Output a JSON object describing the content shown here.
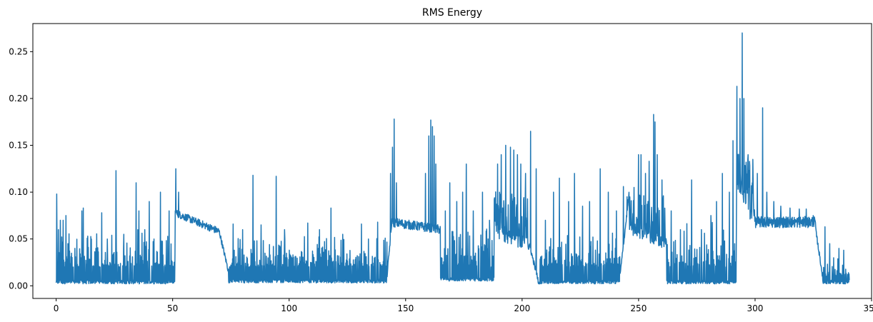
{
  "chart_data": {
    "type": "line",
    "title": "RMS Energy",
    "xlabel": "",
    "ylabel": "",
    "xlim": [
      -10,
      350
    ],
    "ylim": [
      -0.0135,
      0.28
    ],
    "xticks": [
      0,
      50,
      100,
      150,
      200,
      250,
      300,
      350
    ],
    "xtick_labels": [
      "0",
      "50",
      "100",
      "150",
      "200",
      "250",
      "300",
      "350"
    ],
    "yticks": [
      0.0,
      0.05,
      0.1,
      0.15,
      0.2,
      0.25
    ],
    "ytick_labels": [
      "0.00",
      "0.05",
      "0.10",
      "0.15",
      "0.20",
      "0.25"
    ],
    "grid": false,
    "series_color": "#1f77b4",
    "series": [
      {
        "x_start": 0,
        "x_end": 340.5,
        "segments": [
          {
            "x0": 0,
            "x1": 51,
            "mode": "spiky",
            "base": 0.002,
            "peak_lo": 0.02,
            "peak_hi": 0.065,
            "density": 0.55
          },
          {
            "x0": 51,
            "x1": 70,
            "mode": "sustained",
            "level_start": 0.078,
            "level_end": 0.058,
            "noise": 0.004
          },
          {
            "x0": 70,
            "x1": 74,
            "mode": "decay",
            "level_start": 0.058,
            "level_end": 0.015
          },
          {
            "x0": 74,
            "x1": 142,
            "mode": "spiky",
            "base": 0.003,
            "peak_lo": 0.02,
            "peak_hi": 0.06,
            "density": 0.6
          },
          {
            "x0": 142,
            "x1": 144,
            "mode": "rise",
            "level_start": 0.01,
            "level_end": 0.065
          },
          {
            "x0": 144,
            "x1": 165,
            "mode": "sustained",
            "level_start": 0.068,
            "level_end": 0.06,
            "noise": 0.005
          },
          {
            "x0": 165,
            "x1": 188,
            "mode": "spiky",
            "base": 0.005,
            "peak_lo": 0.02,
            "peak_hi": 0.07,
            "density": 0.6
          },
          {
            "x0": 188,
            "x1": 203,
            "mode": "sustained_spiky",
            "level_start": 0.06,
            "level_end": 0.045,
            "noise": 0.01,
            "peak_hi": 0.13
          },
          {
            "x0": 203,
            "x1": 207,
            "mode": "decay",
            "level_start": 0.045,
            "level_end": 0.005
          },
          {
            "x0": 207,
            "x1": 242,
            "mode": "spiky",
            "base": 0.002,
            "peak_lo": 0.02,
            "peak_hi": 0.06,
            "density": 0.55
          },
          {
            "x0": 242,
            "x1": 246,
            "mode": "rise",
            "level_start": 0.01,
            "level_end": 0.1
          },
          {
            "x0": 246,
            "x1": 262,
            "mode": "sustained_spiky",
            "level_start": 0.06,
            "level_end": 0.045,
            "noise": 0.006,
            "peak_hi": 0.13
          },
          {
            "x0": 262,
            "x1": 292,
            "mode": "spiky",
            "base": 0.002,
            "peak_lo": 0.02,
            "peak_hi": 0.075,
            "density": 0.55
          },
          {
            "x0": 292,
            "x1": 300,
            "mode": "sustained_spiky",
            "level_start": 0.11,
            "level_end": 0.07,
            "noise": 0.01,
            "peak_hi": 0.17
          },
          {
            "x0": 300,
            "x1": 326,
            "mode": "sustained",
            "level_start": 0.068,
            "level_end": 0.068,
            "noise": 0.006
          },
          {
            "x0": 326,
            "x1": 329,
            "mode": "decay",
            "level_start": 0.06,
            "level_end": 0.01
          },
          {
            "x0": 329,
            "x1": 340.5,
            "mode": "spiky",
            "base": 0.002,
            "peak_lo": 0.01,
            "peak_hi": 0.035,
            "density": 0.5
          }
        ],
        "peaks": [
          [
            0.3,
            0.098
          ],
          [
            1.0,
            0.06
          ],
          [
            1.8,
            0.07
          ],
          [
            3.0,
            0.07
          ],
          [
            4.2,
            0.075
          ],
          [
            5.0,
            0.045
          ],
          [
            8.0,
            0.04
          ],
          [
            11.0,
            0.08
          ],
          [
            11.6,
            0.083
          ],
          [
            13.5,
            0.053
          ],
          [
            17.0,
            0.04
          ],
          [
            19.6,
            0.078
          ],
          [
            22.0,
            0.05
          ],
          [
            25.7,
            0.123
          ],
          [
            29.0,
            0.055
          ],
          [
            34.3,
            0.11
          ],
          [
            35.5,
            0.08
          ],
          [
            38.0,
            0.06
          ],
          [
            40.0,
            0.09
          ],
          [
            42.0,
            0.05
          ],
          [
            44.7,
            0.1
          ],
          [
            48.5,
            0.08
          ],
          [
            51.3,
            0.125
          ],
          [
            52.5,
            0.1
          ],
          [
            76.0,
            0.066
          ],
          [
            80.0,
            0.06
          ],
          [
            84.5,
            0.118
          ],
          [
            88.0,
            0.065
          ],
          [
            94.5,
            0.117
          ],
          [
            98.0,
            0.06
          ],
          [
            108.0,
            0.067
          ],
          [
            113.0,
            0.06
          ],
          [
            118.0,
            0.083
          ],
          [
            123.0,
            0.055
          ],
          [
            131.0,
            0.066
          ],
          [
            134.0,
            0.05
          ],
          [
            138.0,
            0.068
          ],
          [
            143.5,
            0.12
          ],
          [
            144.4,
            0.148
          ],
          [
            145.1,
            0.178
          ],
          [
            146.0,
            0.11
          ],
          [
            158.5,
            0.12
          ],
          [
            160.0,
            0.16
          ],
          [
            160.8,
            0.177
          ],
          [
            161.5,
            0.17
          ],
          [
            162.2,
            0.16
          ],
          [
            163.0,
            0.13
          ],
          [
            167.0,
            0.08
          ],
          [
            169.0,
            0.11
          ],
          [
            172.0,
            0.09
          ],
          [
            174.5,
            0.1
          ],
          [
            176.0,
            0.13
          ],
          [
            179.0,
            0.08
          ],
          [
            183.0,
            0.1
          ],
          [
            186.0,
            0.07
          ],
          [
            189.5,
            0.13
          ],
          [
            191.0,
            0.14
          ],
          [
            193.0,
            0.15
          ],
          [
            195.0,
            0.148
          ],
          [
            196.5,
            0.145
          ],
          [
            198.0,
            0.14
          ],
          [
            199.5,
            0.13
          ],
          [
            201.5,
            0.12
          ],
          [
            203.7,
            0.165
          ],
          [
            206.0,
            0.125
          ],
          [
            210.0,
            0.07
          ],
          [
            213.5,
            0.1
          ],
          [
            216.0,
            0.115
          ],
          [
            220.0,
            0.09
          ],
          [
            222.5,
            0.12
          ],
          [
            226.0,
            0.085
          ],
          [
            229.0,
            0.09
          ],
          [
            233.5,
            0.125
          ],
          [
            237.0,
            0.1
          ],
          [
            240.5,
            0.08
          ],
          [
            243.5,
            0.106
          ],
          [
            245.0,
            0.095
          ],
          [
            248.0,
            0.105
          ],
          [
            250.0,
            0.14
          ],
          [
            251.0,
            0.14
          ],
          [
            253.0,
            0.12
          ],
          [
            254.5,
            0.133
          ],
          [
            256.5,
            0.183
          ],
          [
            257.0,
            0.175
          ],
          [
            258.0,
            0.14
          ],
          [
            260.0,
            0.113
          ],
          [
            264.0,
            0.08
          ],
          [
            268.0,
            0.06
          ],
          [
            272.8,
            0.113
          ],
          [
            277.0,
            0.06
          ],
          [
            281.0,
            0.075
          ],
          [
            283.5,
            0.09
          ],
          [
            286.0,
            0.12
          ],
          [
            289.0,
            0.1
          ],
          [
            290.5,
            0.155
          ],
          [
            292.2,
            0.213
          ],
          [
            293.5,
            0.2
          ],
          [
            294.5,
            0.27
          ],
          [
            295.2,
            0.2
          ],
          [
            297.0,
            0.14
          ],
          [
            299.0,
            0.135
          ],
          [
            301.0,
            0.12
          ],
          [
            303.2,
            0.19
          ],
          [
            305.0,
            0.1
          ],
          [
            308.0,
            0.09
          ],
          [
            311.0,
            0.085
          ],
          [
            315.0,
            0.083
          ],
          [
            319.0,
            0.082
          ],
          [
            322.0,
            0.082
          ],
          [
            325.0,
            0.075
          ],
          [
            330.0,
            0.063
          ],
          [
            332.0,
            0.045
          ],
          [
            336.0,
            0.04
          ],
          [
            338.0,
            0.038
          ]
        ]
      }
    ]
  }
}
